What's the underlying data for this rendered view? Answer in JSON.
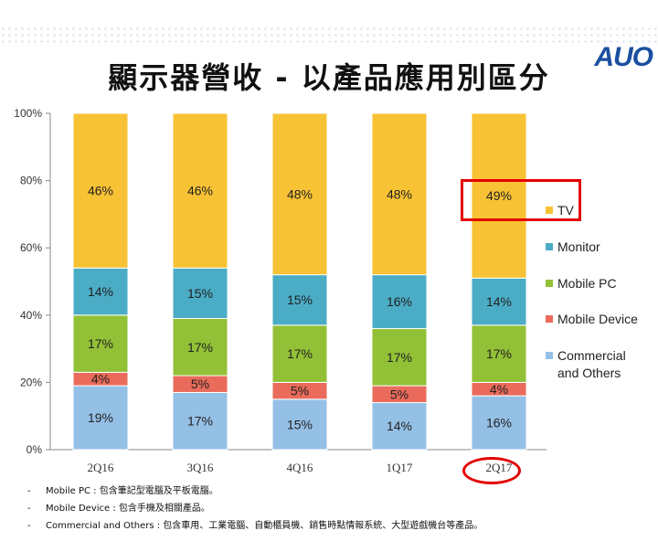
{
  "title": "顯示器營收 - 以產品應用別區分",
  "logo": "AUO",
  "colors": {
    "TV": "#f7c233",
    "Monitor": "#4bacc6",
    "Mobile PC": "#92c036",
    "Mobile Device": "#ea6b5b",
    "Commercial and Others": "#95c0e6",
    "highlight": "#e30000"
  },
  "chart_data": {
    "type": "bar",
    "stacked": true,
    "categories": [
      "2Q16",
      "3Q16",
      "4Q16",
      "1Q17",
      "2Q17"
    ],
    "series": [
      {
        "name": "Commercial and Others",
        "values": [
          19,
          17,
          15,
          14,
          16
        ],
        "labels": [
          "19%",
          "17%",
          "15%",
          "14%",
          "16%"
        ]
      },
      {
        "name": "Mobile Device",
        "values": [
          4,
          5,
          5,
          5,
          4
        ],
        "labels": [
          "4%",
          "5%",
          "5%",
          "5%",
          "4%"
        ]
      },
      {
        "name": "Mobile PC",
        "values": [
          17,
          17,
          17,
          17,
          17
        ],
        "labels": [
          "17%",
          "17%",
          "17%",
          "17%",
          "17%"
        ]
      },
      {
        "name": "Monitor",
        "values": [
          14,
          15,
          15,
          16,
          14
        ],
        "labels": [
          "14%",
          "15%",
          "15%",
          "16%",
          "14%"
        ]
      },
      {
        "name": "TV",
        "values": [
          46,
          46,
          48,
          48,
          49
        ],
        "labels": [
          "46%",
          "46%",
          "48%",
          "48%",
          "49%"
        ]
      }
    ],
    "y_ticks": [
      "0%",
      "20%",
      "40%",
      "60%",
      "80%",
      "100%"
    ],
    "ylim": [
      0,
      100
    ],
    "grid": false,
    "legend_position": "right"
  },
  "legend": [
    {
      "key": "TV",
      "label": "TV"
    },
    {
      "key": "Monitor",
      "label": "Monitor"
    },
    {
      "key": "Mobile PC",
      "label": "Mobile PC"
    },
    {
      "key": "Mobile Device",
      "label": "Mobile Device"
    },
    {
      "key": "Commercial and Others",
      "label": "Commercial",
      "label2": "and Others"
    }
  ],
  "notes": [
    {
      "dash": "-",
      "text": "Mobile PC : 包含筆記型電腦及平板電腦。"
    },
    {
      "dash": "-",
      "text": "Mobile Device : 包含手機及相關產品。"
    },
    {
      "dash": "-",
      "text": "Commercial and Others : 包含車用、工業電腦、自動櫃員機、銷售時點情報系統、大型遊戲機台等產品。"
    }
  ]
}
